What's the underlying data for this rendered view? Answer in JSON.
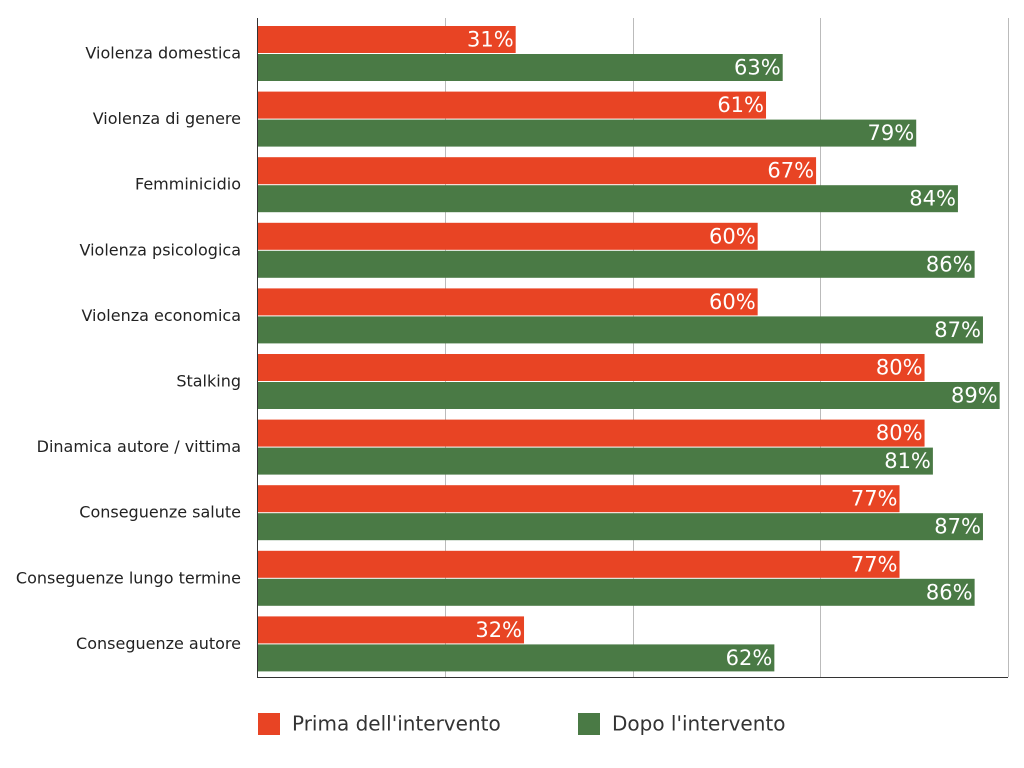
{
  "chart_data": {
    "type": "bar",
    "orientation": "horizontal",
    "title": "",
    "xlabel": "",
    "ylabel": "",
    "categories": [
      "Violenza domestica",
      "Violenza di genere",
      "Femminicidio",
      "Violenza psicologica",
      "Violenza economica",
      "Stalking",
      "Dinamica autore / vittima",
      "Conseguenze salute",
      "Conseguenze lungo termine",
      "Conseguenze autore"
    ],
    "series": [
      {
        "name": "Prima dell'intervento",
        "color": "#e84424",
        "values": [
          31,
          61,
          67,
          60,
          60,
          80,
          80,
          77,
          77,
          32
        ],
        "labels": [
          "31%",
          "61%",
          "67%",
          "60%",
          "60%",
          "80%",
          "80%",
          "77%",
          "77%",
          "32%"
        ]
      },
      {
        "name": "Dopo l'intervento",
        "color": "#4a7a45",
        "values": [
          63,
          79,
          84,
          86,
          87,
          89,
          81,
          87,
          86,
          62
        ],
        "labels": [
          "63%",
          "79%",
          "84%",
          "86%",
          "87%",
          "89%",
          "81%",
          "87%",
          "86%",
          "62%"
        ]
      }
    ],
    "xlim": [
      0,
      90
    ],
    "value_unit": "%",
    "grid": true,
    "legend_position": "bottom"
  }
}
